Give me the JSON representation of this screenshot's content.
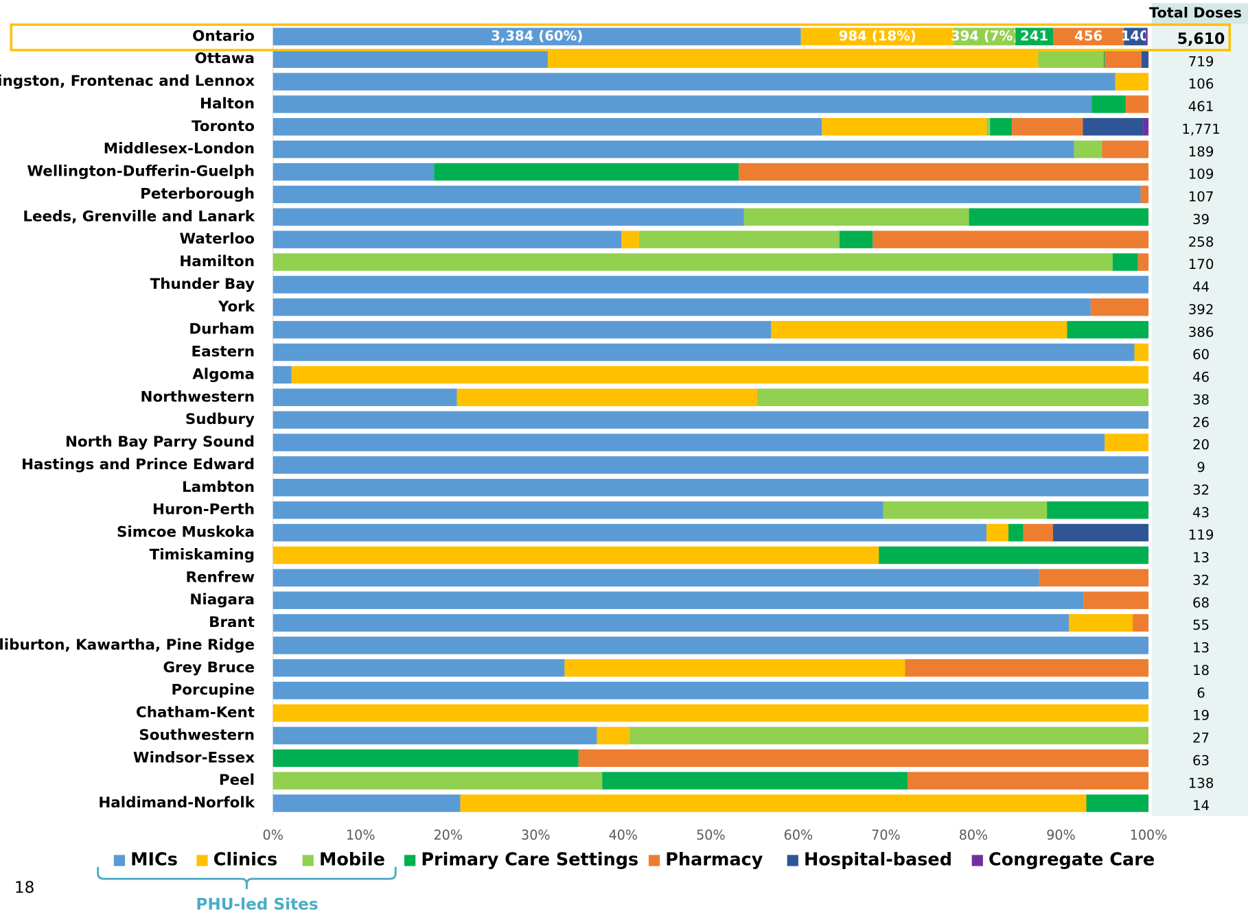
{
  "chart_data": {
    "type": "stacked_barh",
    "categories": [
      "Ontario",
      "Ottawa",
      "Kingston, Frontenac and Lennox",
      "Halton",
      "Toronto",
      "Middlesex-London",
      "Wellington-Dufferin-Guelph",
      "Peterborough",
      "Leeds, Grenville and Lanark",
      "Waterloo",
      "Hamilton",
      "Thunder Bay",
      "York",
      "Durham",
      "Eastern",
      "Algoma",
      "Northwestern",
      "Sudbury",
      "North Bay Parry Sound",
      "Hastings and Prince Edward",
      "Lambton",
      "Huron-Perth",
      "Simcoe Muskoka",
      "Timiskaming",
      "Renfrew",
      "Niagara",
      "Brant",
      "Haliburton, Kawartha, Pine Ridge",
      "Grey Bruce",
      "Porcupine",
      "Chatham-Kent",
      "Southwestern",
      "Windsor-Essex",
      "Peel",
      "Haldimand-Norfolk"
    ],
    "series": [
      {
        "name": "MICs",
        "color": "#5b9bd5",
        "values": [
          60.3,
          31.4,
          96.2,
          93.5,
          62.7,
          91.5,
          18.4,
          99.1,
          53.8,
          39.8,
          0,
          100,
          93.4,
          56.9,
          98.4,
          2.1,
          21.0,
          100,
          95.0,
          100,
          100,
          69.7,
          81.5,
          0,
          87.5,
          92.6,
          90.9,
          100,
          33.3,
          100,
          0,
          37.0,
          0,
          0,
          21.4
        ]
      },
      {
        "name": "Clinics",
        "color": "#ffc000",
        "values": [
          17.5,
          56.0,
          3.8,
          0,
          18.8,
          0,
          0,
          0,
          0,
          2.0,
          0,
          0,
          0,
          33.8,
          1.6,
          97.9,
          34.3,
          0,
          5.0,
          0,
          0,
          0,
          2.5,
          69.2,
          0,
          0,
          7.3,
          0,
          38.9,
          0,
          100,
          3.7,
          0,
          0,
          71.5
        ]
      },
      {
        "name": "Mobile",
        "color": "#92d050",
        "values": [
          7.0,
          7.5,
          0,
          0,
          0.4,
          3.2,
          0,
          0,
          25.7,
          22.9,
          95.9,
          0,
          0,
          0,
          0,
          0,
          44.7,
          0,
          0,
          0,
          0,
          18.7,
          0,
          0,
          0,
          0,
          0,
          0,
          0,
          0,
          0,
          59.3,
          0,
          37.6,
          0
        ]
      },
      {
        "name": "Primary Care Settings",
        "color": "#00b050",
        "values": [
          4.3,
          0.1,
          0,
          3.9,
          2.5,
          0,
          34.8,
          0,
          20.5,
          3.8,
          2.9,
          0,
          0,
          9.3,
          0,
          0,
          0,
          0,
          0,
          0,
          0,
          11.6,
          1.7,
          30.8,
          0,
          0,
          0,
          0,
          0,
          0,
          0,
          0,
          34.9,
          34.9,
          7.1
        ]
      },
      {
        "name": "Pharmacy",
        "color": "#ed7d31",
        "values": [
          8.1,
          4.2,
          0,
          2.6,
          8.1,
          5.3,
          46.8,
          0.9,
          0,
          31.5,
          1.2,
          0,
          6.6,
          0,
          0,
          0,
          0,
          0,
          0,
          0,
          0,
          0,
          3.4,
          0,
          12.5,
          7.4,
          1.8,
          0,
          27.8,
          0,
          0,
          0,
          65.1,
          27.5,
          0
        ]
      },
      {
        "name": "Hospital-based",
        "color": "#2f5597",
        "values": [
          2.5,
          0.8,
          0,
          0,
          6.9,
          0,
          0,
          0,
          0,
          0,
          0,
          0,
          0,
          0,
          0,
          0,
          0,
          0,
          0,
          0,
          0,
          0,
          10.9,
          0,
          0,
          0,
          0,
          0,
          0,
          0,
          0,
          0,
          0,
          0,
          0
        ]
      },
      {
        "name": "Congregate Care",
        "color": "#7030a0",
        "values": [
          0.2,
          0,
          0,
          0,
          0.6,
          0,
          0,
          0,
          0,
          0,
          0,
          0,
          0,
          0,
          0,
          0,
          0,
          0,
          0,
          0,
          0,
          0,
          0,
          0,
          0,
          0,
          0,
          0,
          0,
          0,
          0,
          0,
          0,
          0,
          0
        ]
      }
    ],
    "annotations": [
      "3,384 (60%)",
      "984 (18%)",
      "394 (7%)",
      "241",
      "456",
      "140"
    ],
    "total_header": "Total Doses",
    "total_doses": [
      {
        "value": 5610,
        "label": "5,610"
      },
      719,
      106,
      461,
      {
        "value": 1771,
        "label": "1,771"
      },
      189,
      109,
      107,
      39,
      258,
      170,
      44,
      392,
      386,
      60,
      46,
      38,
      26,
      20,
      9,
      32,
      43,
      119,
      13,
      32,
      68,
      55,
      13,
      18,
      6,
      19,
      27,
      63,
      138,
      14
    ],
    "xlim": [
      0,
      100
    ],
    "xticks": [
      {
        "value": 0,
        "label": "0%"
      },
      {
        "value": 10,
        "label": "10%"
      },
      {
        "value": 20,
        "label": "20%"
      },
      {
        "value": 30,
        "label": "30%"
      },
      {
        "value": 40,
        "label": "40%"
      },
      {
        "value": 50,
        "label": "50%"
      },
      {
        "value": 60,
        "label": "60%"
      },
      {
        "value": 70,
        "label": "70%"
      },
      {
        "value": 80,
        "label": "80%"
      },
      {
        "value": 90,
        "label": "90%"
      },
      {
        "value": 100,
        "label": "100%"
      }
    ],
    "legend_group": "PHU-led Sites",
    "page_number": "18"
  }
}
